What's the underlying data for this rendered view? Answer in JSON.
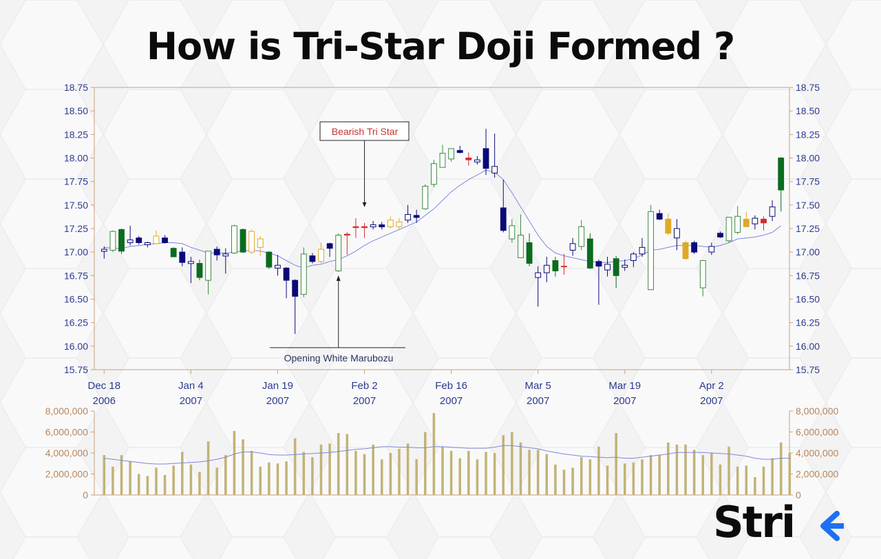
{
  "title": "How is Tri-Star Doji Formed ?",
  "brand": {
    "name": "Stri",
    "arrow_color": "#1e6ff2"
  },
  "colors": {
    "axis_text": "#2d3a8c",
    "volume_axis_text": "#b8865a",
    "axis_line": "#c9a07a",
    "bull_filled": "#0b6b1e",
    "bull_hollow": "#3a8a3a",
    "bear_filled": "#0a0a78",
    "bear_hollow": "#0a0a78",
    "gold": "#e0a826",
    "doji_red": "#d62b2b",
    "moving_average": "#7d87d8",
    "volume_bar": "#c2b376",
    "annotation_red": "#c8302f"
  },
  "chart_data": [
    {
      "type": "candlestick",
      "y_ticks": [
        "18.75",
        "18.50",
        "18.25",
        "18.00",
        "17.75",
        "17.50",
        "17.25",
        "17.00",
        "16.75",
        "16.50",
        "16.25",
        "16.00",
        "15.75"
      ],
      "ylim": [
        15.75,
        18.75
      ],
      "x_tick_labels": [
        {
          "top": "Dec 18",
          "bottom": "2006",
          "index": 0
        },
        {
          "top": "Jan 4",
          "bottom": "2007",
          "index": 10
        },
        {
          "top": "Jan 19",
          "bottom": "2007",
          "index": 20
        },
        {
          "top": "Feb 2",
          "bottom": "2007",
          "index": 30
        },
        {
          "top": "Feb 16",
          "bottom": "2007",
          "index": 40
        },
        {
          "top": "Mar 5",
          "bottom": "2007",
          "index": 50
        },
        {
          "top": "Mar 19",
          "bottom": "2007",
          "index": 60
        },
        {
          "top": "Apr 2",
          "bottom": "2007",
          "index": 70
        }
      ],
      "annotations": [
        {
          "text": "Bearish Tri Star",
          "target_index": 30,
          "target_price": 17.47
        },
        {
          "text": "Opening White Marubozu",
          "target_index": 27,
          "target_price": 16.8
        }
      ],
      "candles": [
        [
          17.03,
          17.06,
          16.93,
          17.03,
          "doji"
        ],
        [
          17.02,
          17.23,
          17.0,
          17.22,
          "bull_hollow"
        ],
        [
          17.24,
          17.25,
          16.98,
          17.01,
          "bull_filled"
        ],
        [
          17.1,
          17.28,
          17.07,
          17.13,
          "doji"
        ],
        [
          17.15,
          17.17,
          17.08,
          17.1,
          "bear_filled"
        ],
        [
          17.1,
          17.11,
          17.05,
          17.08,
          "doji"
        ],
        [
          17.09,
          17.23,
          17.08,
          17.17,
          "gold_hollow"
        ],
        [
          17.15,
          17.18,
          17.09,
          17.1,
          "bear_filled"
        ],
        [
          17.04,
          17.05,
          16.95,
          16.95,
          "bull_filled"
        ],
        [
          17.0,
          17.05,
          16.85,
          16.89,
          "bear_filled"
        ],
        [
          16.9,
          16.95,
          16.67,
          16.89,
          "doji"
        ],
        [
          16.88,
          16.92,
          16.7,
          16.73,
          "bull_filled"
        ],
        [
          16.7,
          17.01,
          16.55,
          17.01,
          "bull_hollow"
        ],
        [
          17.03,
          17.06,
          16.91,
          16.97,
          "bear_filled"
        ],
        [
          16.98,
          17.04,
          16.77,
          16.97,
          "doji"
        ],
        [
          16.99,
          17.29,
          16.98,
          17.28,
          "bull_hollow"
        ],
        [
          17.24,
          17.25,
          16.99,
          17.0,
          "bull_filled"
        ],
        [
          17.0,
          17.24,
          16.98,
          17.22,
          "gold_hollow"
        ],
        [
          17.14,
          17.17,
          16.96,
          17.05,
          "gold_hollow"
        ],
        [
          17.0,
          17.01,
          16.82,
          16.84,
          "bull_filled"
        ],
        [
          16.86,
          16.97,
          16.75,
          16.83,
          "bear_hollow"
        ],
        [
          16.83,
          16.84,
          16.51,
          16.7,
          "bear_filled"
        ],
        [
          16.7,
          16.71,
          16.13,
          16.53,
          "bear_filled"
        ],
        [
          16.55,
          17.05,
          16.52,
          16.98,
          "bull_hollow"
        ],
        [
          16.96,
          16.99,
          16.88,
          16.9,
          "bear_filled"
        ],
        [
          16.9,
          17.1,
          16.88,
          17.03,
          "gold_hollow"
        ],
        [
          17.04,
          17.1,
          16.95,
          17.09,
          "bear_filled"
        ],
        [
          16.8,
          17.2,
          16.79,
          17.18,
          "bull_hollow"
        ],
        [
          17.19,
          17.21,
          16.97,
          17.18,
          "red_doji"
        ],
        [
          17.26,
          17.36,
          17.15,
          17.27,
          "red_doji"
        ],
        [
          17.27,
          17.31,
          17.15,
          17.26,
          "red_doji"
        ],
        [
          17.28,
          17.33,
          17.24,
          17.29,
          "doji"
        ],
        [
          17.27,
          17.32,
          17.24,
          17.29,
          "bear_filled"
        ],
        [
          17.27,
          17.38,
          17.25,
          17.34,
          "gold_hollow"
        ],
        [
          17.27,
          17.36,
          17.24,
          17.32,
          "gold_hollow"
        ],
        [
          17.34,
          17.5,
          17.31,
          17.4,
          "bear_hollow"
        ],
        [
          17.38,
          17.45,
          17.31,
          17.39,
          "bear_filled"
        ],
        [
          17.46,
          17.72,
          17.45,
          17.7,
          "bull_hollow"
        ],
        [
          17.72,
          17.98,
          17.69,
          17.94,
          "bull_hollow"
        ],
        [
          17.9,
          18.14,
          17.9,
          18.05,
          "bull_hollow"
        ],
        [
          17.99,
          18.1,
          17.96,
          18.1,
          "bull_hollow"
        ],
        [
          18.08,
          18.13,
          18.05,
          18.06,
          "bear_filled"
        ],
        [
          18.0,
          18.06,
          17.92,
          17.98,
          "red_doji"
        ],
        [
          17.98,
          18.02,
          17.93,
          17.98,
          "doji"
        ],
        [
          18.1,
          18.31,
          17.82,
          17.89,
          "bear_filled"
        ],
        [
          17.91,
          18.26,
          17.79,
          17.84,
          "bear_hollow"
        ],
        [
          17.47,
          17.77,
          17.21,
          17.23,
          "bear_filled"
        ],
        [
          17.28,
          17.35,
          17.1,
          17.14,
          "bull_hollow"
        ],
        [
          17.18,
          17.4,
          16.96,
          16.94,
          "bull_hollow"
        ],
        [
          17.1,
          17.2,
          16.85,
          16.88,
          "bull_filled"
        ],
        [
          16.78,
          16.85,
          16.42,
          16.73,
          "bear_hollow"
        ],
        [
          16.78,
          16.95,
          16.68,
          16.86,
          "bear_hollow"
        ],
        [
          16.8,
          16.95,
          16.74,
          16.91,
          "bull_filled"
        ],
        [
          16.85,
          16.98,
          16.76,
          16.85,
          "red_doji"
        ],
        [
          17.02,
          17.15,
          16.96,
          17.09,
          "bear_hollow"
        ],
        [
          17.06,
          17.34,
          17.02,
          17.27,
          "bull_hollow"
        ],
        [
          17.14,
          17.2,
          16.82,
          16.83,
          "bull_filled"
        ],
        [
          16.9,
          16.92,
          16.44,
          16.85,
          "bear_filled"
        ],
        [
          16.87,
          16.95,
          16.74,
          16.81,
          "bear_hollow"
        ],
        [
          16.93,
          16.96,
          16.62,
          16.75,
          "bull_filled"
        ],
        [
          16.86,
          16.92,
          16.8,
          16.85,
          "doji"
        ],
        [
          16.91,
          17.0,
          16.84,
          16.98,
          "bear_hollow"
        ],
        [
          17.05,
          17.15,
          16.95,
          16.98,
          "bear_hollow"
        ],
        [
          16.6,
          17.5,
          16.6,
          17.43,
          "bull_hollow"
        ],
        [
          17.41,
          17.45,
          17.34,
          17.35,
          "bear_filled"
        ],
        [
          17.35,
          17.41,
          17.18,
          17.2,
          "gold_filled"
        ],
        [
          17.15,
          17.35,
          17.02,
          17.25,
          "bear_hollow"
        ],
        [
          17.1,
          17.12,
          16.92,
          16.93,
          "gold_filled"
        ],
        [
          17.1,
          17.12,
          16.98,
          17.0,
          "bear_filled"
        ],
        [
          16.62,
          16.9,
          16.53,
          16.91,
          "bull_hollow"
        ],
        [
          17.0,
          17.1,
          16.97,
          17.06,
          "bear_hollow"
        ],
        [
          17.16,
          17.22,
          17.15,
          17.2,
          "bear_filled"
        ],
        [
          17.12,
          17.37,
          17.1,
          17.37,
          "bull_hollow"
        ],
        [
          17.38,
          17.49,
          17.19,
          17.21,
          "bull_hollow"
        ],
        [
          17.35,
          17.43,
          17.28,
          17.27,
          "gold_filled"
        ],
        [
          17.3,
          17.39,
          17.24,
          17.36,
          "bear_hollow"
        ],
        [
          17.31,
          17.38,
          17.23,
          17.35,
          "red_doji"
        ],
        [
          17.48,
          17.55,
          17.33,
          17.38,
          "bear_hollow"
        ],
        [
          17.66,
          18.01,
          17.43,
          18.0,
          "bull_filled"
        ]
      ],
      "moving_average": [
        17.05,
        17.04,
        17.04,
        17.06,
        17.07,
        17.08,
        17.09,
        17.1,
        17.1,
        17.09,
        17.05,
        17.02,
        16.99,
        16.99,
        16.99,
        17.0,
        17.01,
        17.02,
        17.01,
        16.99,
        16.96,
        16.91,
        16.86,
        16.83,
        16.86,
        16.87,
        16.9,
        16.92,
        16.96,
        17.01,
        17.07,
        17.12,
        17.16,
        17.2,
        17.24,
        17.28,
        17.32,
        17.39,
        17.46,
        17.55,
        17.64,
        17.71,
        17.77,
        17.82,
        17.87,
        17.85,
        17.77,
        17.63,
        17.48,
        17.33,
        17.18,
        17.06,
        16.99,
        16.96,
        16.94,
        16.92,
        16.9,
        16.89,
        16.89,
        16.9,
        16.91,
        16.93,
        16.97,
        17.02,
        17.03,
        17.05,
        17.07,
        17.07,
        17.07,
        17.06,
        17.05,
        17.07,
        17.1,
        17.14,
        17.15,
        17.16,
        17.18,
        17.21,
        17.28
      ],
      "moving_average_start_index": 0
    },
    {
      "type": "bar",
      "y_ticks": [
        "8,000,000",
        "6,000,000",
        "4,000,000",
        "2,000,000",
        "0"
      ],
      "ylim": [
        0,
        8000000
      ],
      "values": [
        3800000,
        2700000,
        3800000,
        3200000,
        2000000,
        1800000,
        2600000,
        1900000,
        2800000,
        4100000,
        2900000,
        2200000,
        5100000,
        2600000,
        3800000,
        6100000,
        5300000,
        4200000,
        2700000,
        3100000,
        3000000,
        3200000,
        5400000,
        4100000,
        3600000,
        4800000,
        4900000,
        5900000,
        5800000,
        4200000,
        3900000,
        4800000,
        3400000,
        4000000,
        4400000,
        4900000,
        3400000,
        6000000,
        7800000,
        4600000,
        4200000,
        3500000,
        4200000,
        3400000,
        4100000,
        4000000,
        5700000,
        6000000,
        5000000,
        4300000,
        4300000,
        3900000,
        2900000,
        2400000,
        2600000,
        3600000,
        3400000,
        4600000,
        2800000,
        5900000,
        3000000,
        3100000,
        3400000,
        3800000,
        3800000,
        5000000,
        4800000,
        4800000,
        4300000,
        3800000,
        4000000,
        2900000,
        4600000,
        2700000,
        2800000,
        1700000,
        2700000,
        3500000,
        5000000,
        4000000
      ],
      "moving_average": [
        3500000,
        3400000,
        3300000,
        3200000,
        3100000,
        3000000,
        2950000,
        2950000,
        3000000,
        3050000,
        3100000,
        3150000,
        3250000,
        3400000,
        3600000,
        3900000,
        4100000,
        4100000,
        4000000,
        3850000,
        3800000,
        3800000,
        3850000,
        3900000,
        3950000,
        4000000,
        4050000,
        4150000,
        4250000,
        4350000,
        4400000,
        4500000,
        4600000,
        4600000,
        4550000,
        4550000,
        4500000,
        4500000,
        4600000,
        4600000,
        4550000,
        4500000,
        4450000,
        4450000,
        4450000,
        4550000,
        4700000,
        4700000,
        4600000,
        4500000,
        4400000,
        4200000,
        4050000,
        3900000,
        3800000,
        3700000,
        3650000,
        3600000,
        3550000,
        3600000,
        3500000,
        3500000,
        3600000,
        3700000,
        3800000,
        3900000,
        4050000,
        4050000,
        4050000,
        4050000,
        4000000,
        3950000,
        3900000,
        3800000,
        3700000,
        3500000,
        3400000,
        3400000,
        3500000,
        3500000
      ]
    }
  ]
}
